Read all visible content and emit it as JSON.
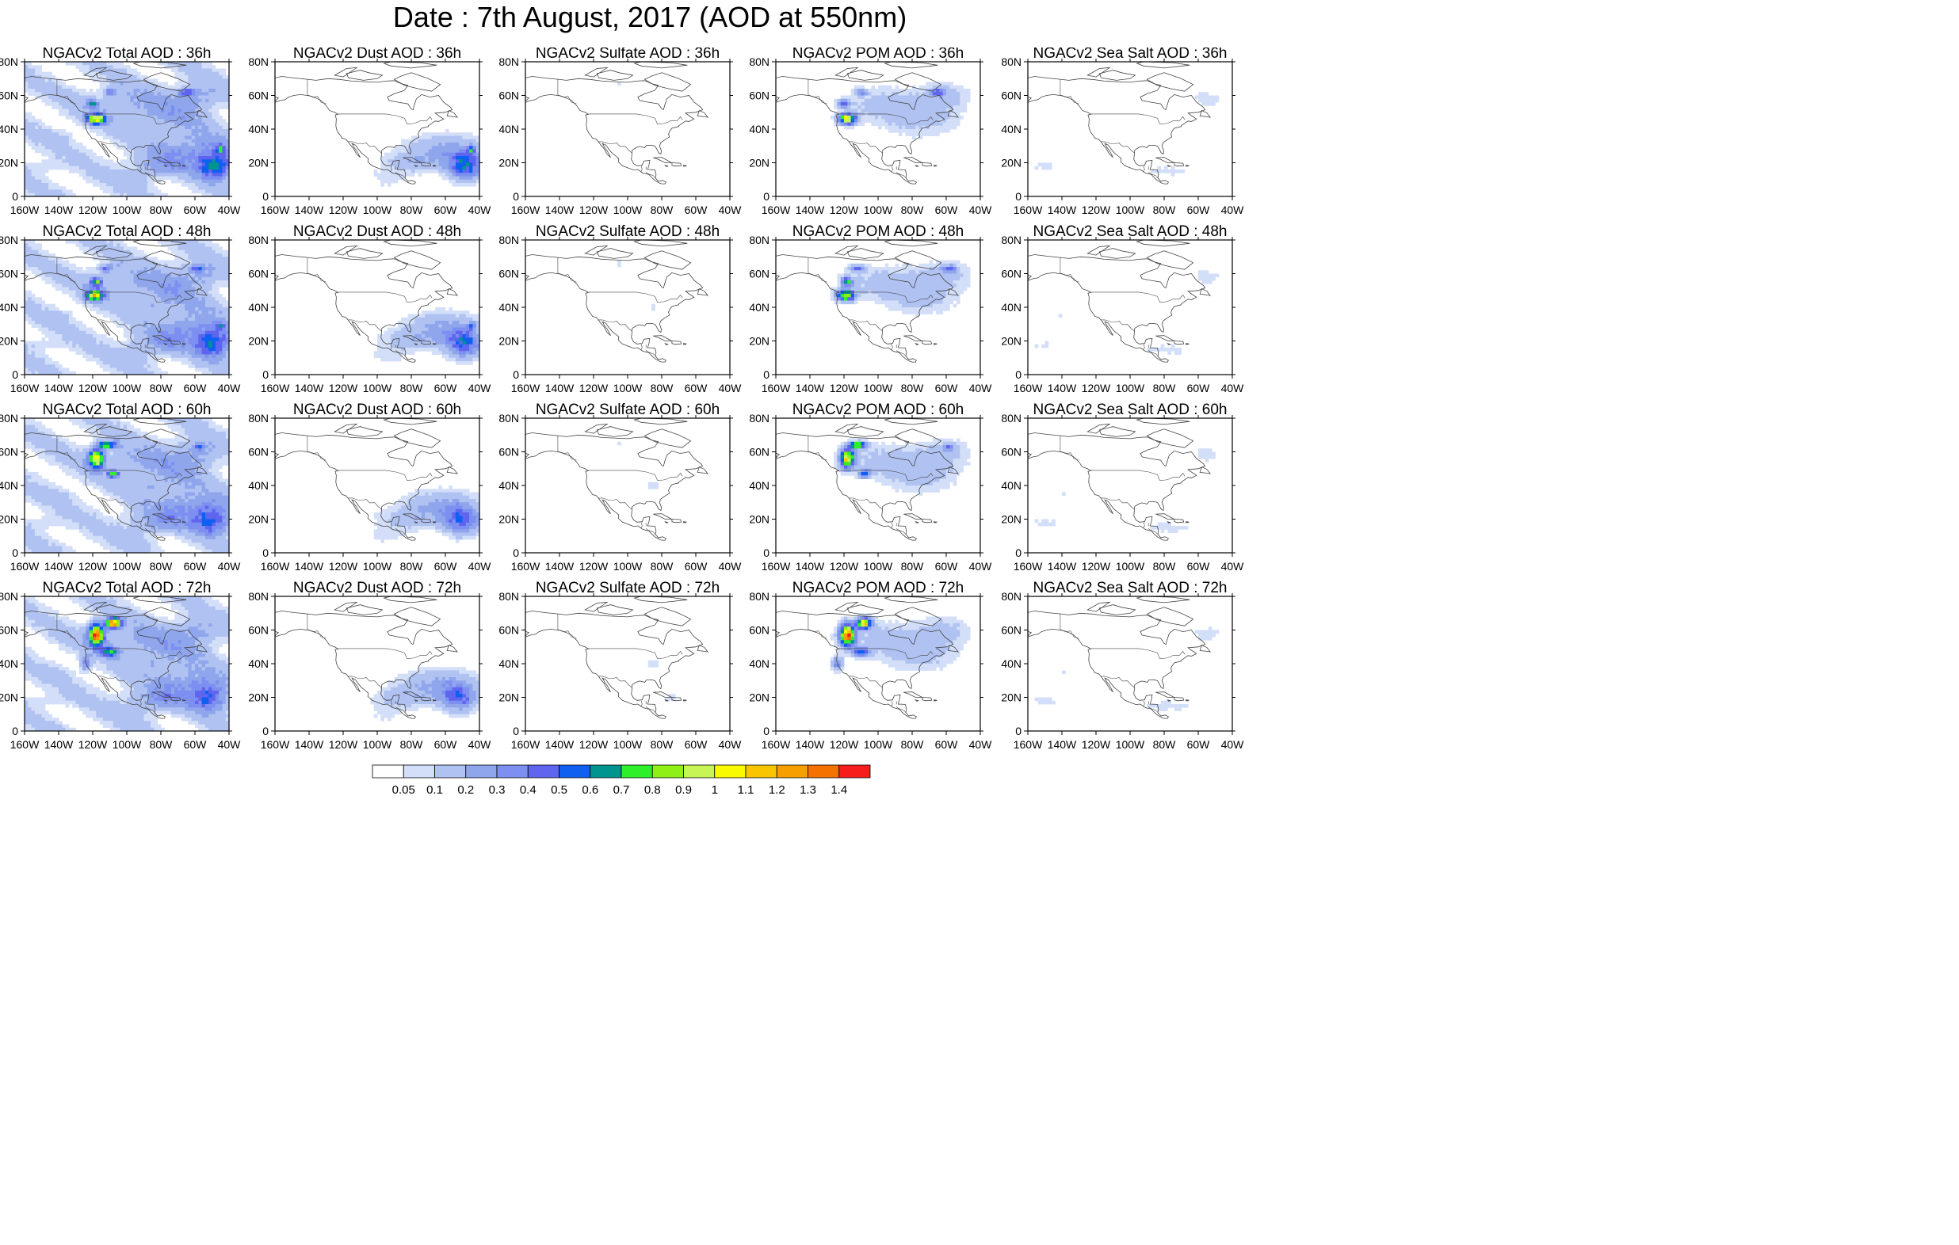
{
  "title": "Date : 7th August, 2017 (AOD at 550nm)",
  "panel_titles": [
    [
      "NGACv2 Total AOD : 36h",
      "NGACv2 Dust AOD : 36h",
      "NGACv2 Sulfate AOD : 36h",
      "NGACv2 POM AOD : 36h",
      "NGACv2 Sea Salt AOD : 36h"
    ],
    [
      "NGACv2 Total AOD : 48h",
      "NGACv2 Dust AOD : 48h",
      "NGACv2 Sulfate AOD : 48h",
      "NGACv2 POM AOD : 48h",
      "NGACv2 Sea Salt AOD : 48h"
    ],
    [
      "NGACv2 Total AOD : 60h",
      "NGACv2 Dust AOD : 60h",
      "NGACv2 Sulfate AOD : 60h",
      "NGACv2 POM AOD : 60h",
      "NGACv2 Sea Salt AOD : 60h"
    ],
    [
      "NGACv2 Total AOD : 72h",
      "NGACv2 Dust AOD : 72h",
      "NGACv2 Sulfate AOD : 72h",
      "NGACv2 POM AOD : 72h",
      "NGACv2 Sea Salt  AOD : 72h"
    ]
  ],
  "x_ticks": [
    "160W",
    "140W",
    "120W",
    "100W",
    "80W",
    "60W",
    "40W"
  ],
  "y_ticks": [
    "0",
    "20N",
    "40N",
    "60N",
    "80N"
  ],
  "legend": {
    "labels": [
      "0.05",
      "0.1",
      "0.2",
      "0.3",
      "0.4",
      "0.5",
      "0.6",
      "0.7",
      "0.8",
      "0.9",
      "1",
      "1.1",
      "1.2",
      "1.3",
      "1.4"
    ],
    "colors": [
      "#ffffff",
      "#d3def8",
      "#b0c2f1",
      "#8fa6ec",
      "#7d8ff0",
      "#5f65ee",
      "#0f5ff0",
      "#00948f",
      "#2ef02a",
      "#8ff016",
      "#c6f555",
      "#f9f900",
      "#f8c500",
      "#f89f00",
      "#f57100",
      "#f81d1d"
    ]
  }
}
